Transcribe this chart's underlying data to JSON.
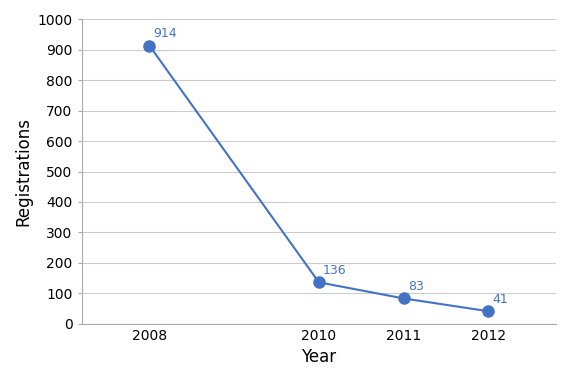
{
  "years": [
    2008,
    2010,
    2011,
    2012
  ],
  "values": [
    914,
    136,
    83,
    41
  ],
  "line_color": "#4472C4",
  "marker_color": "#4472C4",
  "marker_size": 8,
  "line_width": 1.5,
  "xlabel": "Year",
  "ylabel": "Registrations",
  "ylim": [
    0,
    1000
  ],
  "yticks": [
    0,
    100,
    200,
    300,
    400,
    500,
    600,
    700,
    800,
    900,
    1000
  ],
  "figure_bg_color": "#FFFFFF",
  "plot_bg_color": "#FFFFFF",
  "grid_color": "#CCCCCC",
  "label_fontsize": 9,
  "axis_label_fontsize": 12,
  "tick_label_fontsize": 10,
  "annotation_color": "#4472C4",
  "xlim": [
    2007.2,
    2012.8
  ]
}
